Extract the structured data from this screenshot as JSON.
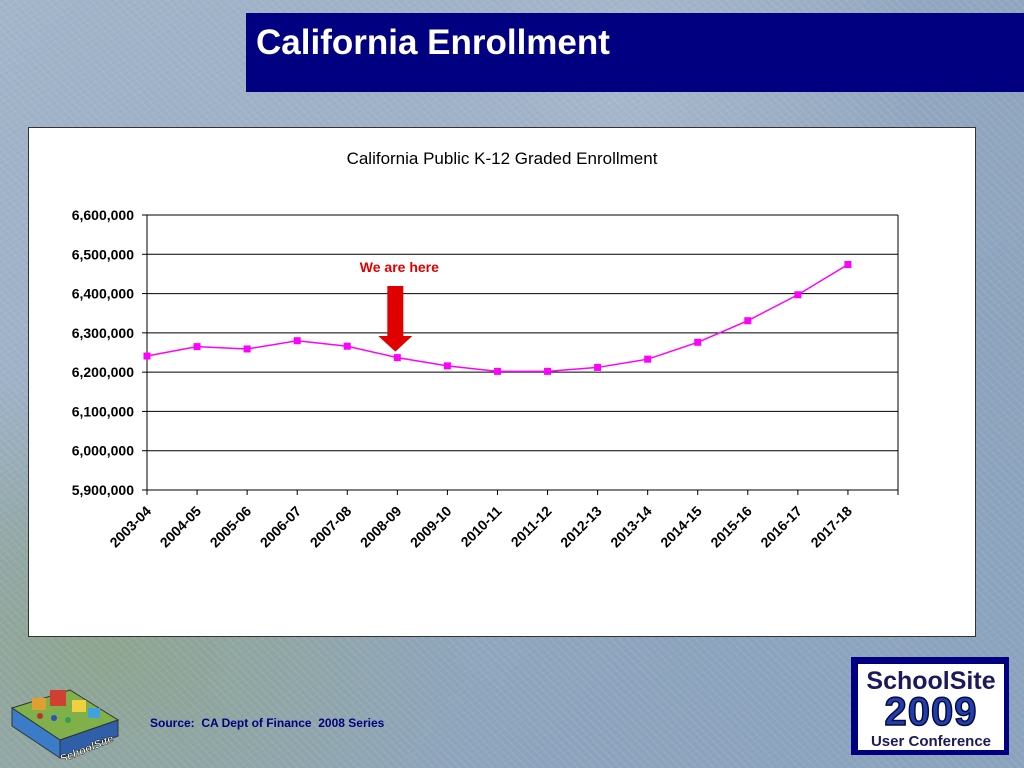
{
  "slide": {
    "title": "California Enrollment",
    "source": "Source:  CA Dept of Finance  2008 Series"
  },
  "logo": {
    "text": "SchoolSite"
  },
  "badge": {
    "line1": "SchoolSite",
    "line2": "2009",
    "line3": "User Conference"
  },
  "annotation": {
    "label": "We are here",
    "category": "2008-09",
    "color": "#e00000"
  },
  "chart_data": {
    "type": "line",
    "title": "California Public K-12 Graded Enrollment",
    "xlabel": "",
    "ylabel": "",
    "categories": [
      "2003-04",
      "2004-05",
      "2005-06",
      "2006-07",
      "2007-08",
      "2008-09",
      "2009-10",
      "2010-11",
      "2011-12",
      "2012-13",
      "2013-14",
      "2014-15",
      "2015-16",
      "2016-17",
      "2017-18"
    ],
    "series": [
      {
        "name": "",
        "color": "#ff00ff",
        "values": [
          6241000,
          6265000,
          6259000,
          6280000,
          6266000,
          6237000,
          6216000,
          6202000,
          6202000,
          6212000,
          6233000,
          6276000,
          6331000,
          6397000,
          6474000
        ]
      }
    ],
    "ylim": [
      5900000,
      6600000
    ],
    "yticks": [
      5900000,
      6000000,
      6100000,
      6200000,
      6300000,
      6400000,
      6500000,
      6600000
    ],
    "ytick_labels": [
      "5,900,000",
      "6,000,000",
      "6,100,000",
      "6,200,000",
      "6,300,000",
      "6,400,000",
      "6,500,000",
      "6,600,000"
    ],
    "grid": true,
    "legend": "none"
  }
}
